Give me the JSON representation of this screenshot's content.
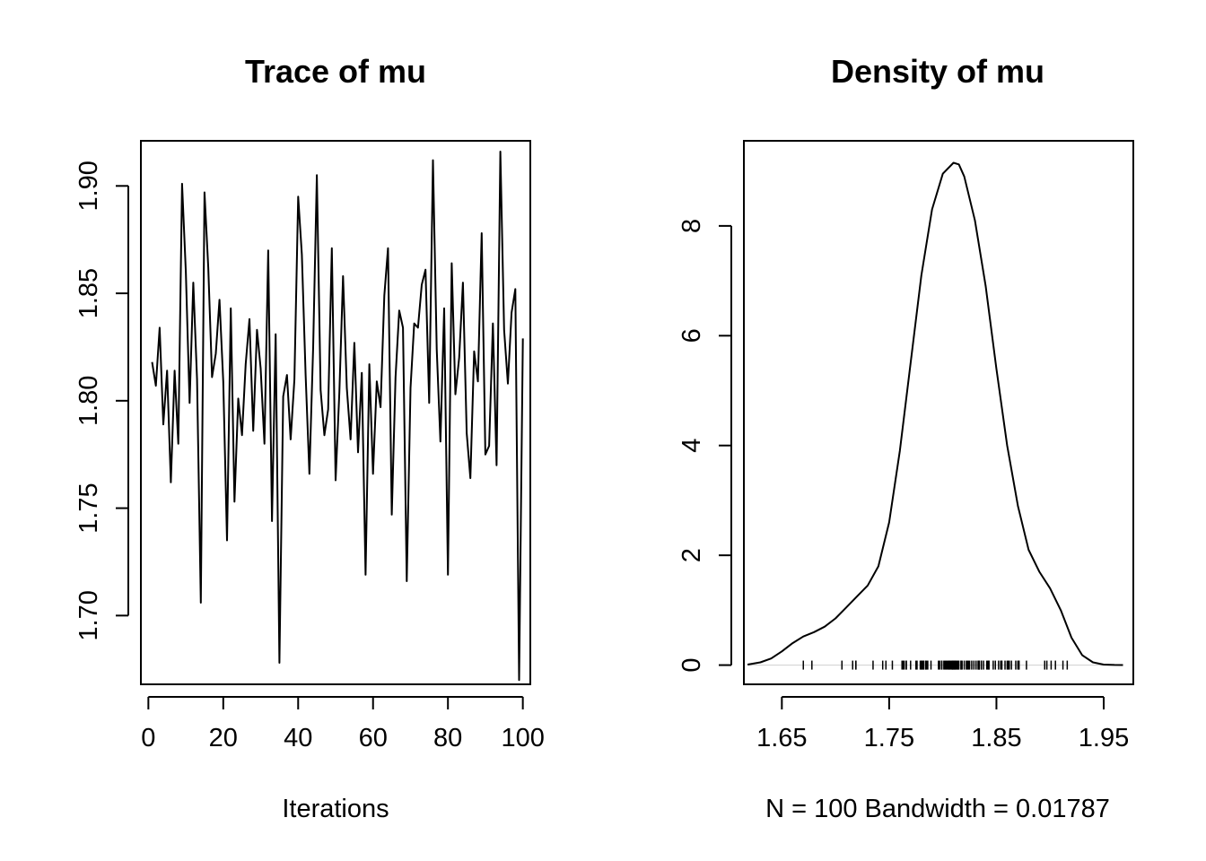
{
  "panels": [
    {
      "title": "Trace of mu",
      "xlabel": "Iterations",
      "ylabel": "",
      "x_ticks": [
        "0",
        "20",
        "40",
        "60",
        "80",
        "100"
      ],
      "y_ticks": [
        "1.70",
        "1.75",
        "1.80",
        "1.85",
        "1.90"
      ]
    },
    {
      "title": "Density of mu",
      "xlabel": "N = 100   Bandwidth = 0.01787",
      "ylabel": "",
      "x_ticks": [
        "1.65",
        "1.75",
        "1.85",
        "1.95"
      ],
      "y_ticks": [
        "0",
        "2",
        "4",
        "6",
        "8"
      ]
    }
  ],
  "chart_data": [
    {
      "type": "line",
      "title": "Trace of mu",
      "xlabel": "Iterations",
      "ylabel": "",
      "xlim": [
        -2,
        102
      ],
      "ylim": [
        1.668,
        1.921
      ],
      "x_ticks": [
        0,
        20,
        40,
        60,
        80,
        100
      ],
      "y_ticks": [
        1.7,
        1.75,
        1.8,
        1.85,
        1.9
      ],
      "grid": false,
      "series": [
        {
          "x_start": 1,
          "values": [
            1.818,
            1.807,
            1.834,
            1.789,
            1.814,
            1.762,
            1.814,
            1.78,
            1.901,
            1.86,
            1.799,
            1.855,
            1.81,
            1.706,
            1.897,
            1.862,
            1.811,
            1.822,
            1.847,
            1.809,
            1.735,
            1.843,
            1.753,
            1.801,
            1.784,
            1.817,
            1.838,
            1.786,
            1.833,
            1.815,
            1.78,
            1.87,
            1.744,
            1.831,
            1.678,
            1.802,
            1.812,
            1.782,
            1.81,
            1.895,
            1.868,
            1.812,
            1.766,
            1.825,
            1.905,
            1.805,
            1.784,
            1.796,
            1.871,
            1.763,
            1.804,
            1.858,
            1.806,
            1.782,
            1.827,
            1.776,
            1.813,
            1.719,
            1.817,
            1.766,
            1.809,
            1.797,
            1.849,
            1.871,
            1.747,
            1.811,
            1.842,
            1.834,
            1.716,
            1.806,
            1.836,
            1.834,
            1.854,
            1.861,
            1.799,
            1.912,
            1.824,
            1.781,
            1.843,
            1.719,
            1.864,
            1.803,
            1.82,
            1.855,
            1.785,
            1.764,
            1.823,
            1.809,
            1.878,
            1.775,
            1.779,
            1.836,
            1.77,
            1.916,
            1.833,
            1.808,
            1.841,
            1.852,
            1.67,
            1.829
          ]
        }
      ]
    },
    {
      "type": "line",
      "title": "Density of mu",
      "xlabel": "N = 100   Bandwidth = 0.01787",
      "ylabel": "",
      "xlim": [
        1.6146,
        1.9776
      ],
      "ylim": [
        -0.35,
        9.55
      ],
      "x_ticks": [
        1.65,
        1.75,
        1.85,
        1.95
      ],
      "y_ticks": [
        0,
        2,
        4,
        6,
        8
      ],
      "grid": false,
      "series": [
        {
          "x": [
            1.618,
            1.63,
            1.64,
            1.65,
            1.66,
            1.67,
            1.68,
            1.69,
            1.7,
            1.71,
            1.72,
            1.73,
            1.74,
            1.75,
            1.76,
            1.77,
            1.78,
            1.79,
            1.8,
            1.81,
            1.815,
            1.82,
            1.83,
            1.84,
            1.85,
            1.86,
            1.87,
            1.88,
            1.89,
            1.9,
            1.91,
            1.92,
            1.93,
            1.94,
            1.95,
            1.96,
            1.968
          ],
          "y": [
            0.01,
            0.05,
            0.12,
            0.25,
            0.4,
            0.52,
            0.6,
            0.7,
            0.85,
            1.05,
            1.25,
            1.45,
            1.8,
            2.6,
            3.9,
            5.5,
            7.1,
            8.3,
            8.95,
            9.15,
            9.12,
            8.9,
            8.1,
            6.9,
            5.4,
            4.0,
            2.9,
            2.1,
            1.7,
            1.4,
            1.0,
            0.5,
            0.18,
            0.05,
            0.01,
            0.003,
            0.001
          ]
        }
      ],
      "rug": [
        1.67,
        1.678,
        1.706,
        1.716,
        1.719,
        1.719,
        1.735,
        1.744,
        1.747,
        1.753,
        1.762,
        1.763,
        1.764,
        1.766,
        1.766,
        1.77,
        1.775,
        1.776,
        1.779,
        1.78,
        1.78,
        1.781,
        1.782,
        1.782,
        1.784,
        1.784,
        1.785,
        1.786,
        1.789,
        1.796,
        1.797,
        1.799,
        1.799,
        1.801,
        1.802,
        1.803,
        1.804,
        1.805,
        1.806,
        1.806,
        1.807,
        1.808,
        1.809,
        1.809,
        1.809,
        1.81,
        1.81,
        1.811,
        1.811,
        1.812,
        1.812,
        1.813,
        1.814,
        1.814,
        1.815,
        1.817,
        1.817,
        1.818,
        1.82,
        1.822,
        1.823,
        1.824,
        1.825,
        1.827,
        1.829,
        1.831,
        1.833,
        1.833,
        1.834,
        1.834,
        1.834,
        1.836,
        1.836,
        1.838,
        1.841,
        1.842,
        1.843,
        1.843,
        1.847,
        1.849,
        1.852,
        1.854,
        1.855,
        1.855,
        1.858,
        1.86,
        1.861,
        1.862,
        1.864,
        1.868,
        1.87,
        1.871,
        1.871,
        1.878,
        1.895,
        1.897,
        1.901,
        1.905,
        1.912,
        1.916
      ]
    }
  ]
}
